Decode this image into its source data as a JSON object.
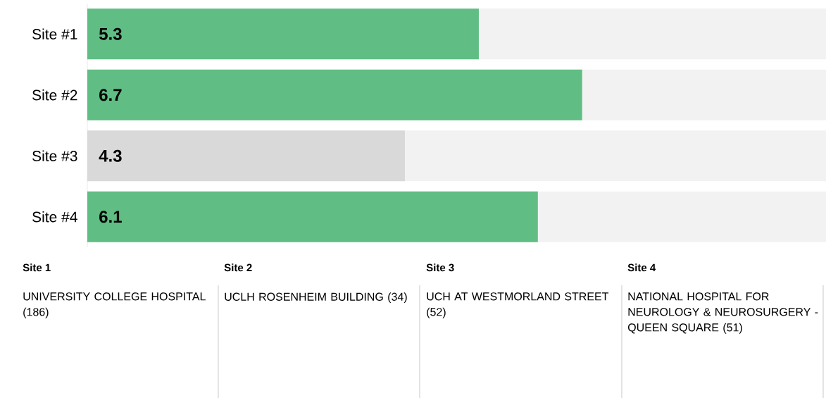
{
  "chart_data": {
    "type": "bar",
    "orientation": "horizontal",
    "stacked": true,
    "categories": [
      "Site #1",
      "Site #2",
      "Site #3",
      "Site #4"
    ],
    "xlim": [
      0,
      10
    ],
    "tick_labels": "y",
    "series": [
      {
        "colors": [
          "#60bd84",
          "#60bd84",
          "#d9d9d9",
          "#60bd84"
        ],
        "values": [
          5.3,
          6.7,
          4.3,
          6.1
        ],
        "value_labels": [
          "5.3",
          "6.7",
          "4.3",
          "6.1"
        ]
      },
      {
        "color": "#f2f2f2",
        "values": [
          4.7,
          3.3,
          5.7,
          3.9
        ]
      }
    ],
    "annotations": [
      "Site 1",
      "UNIVERSITY COLLEGE HOSPITAL (186)",
      "Site 2",
      "UCLH ROSENHEIM BUILDING (34)",
      "Site 3",
      "UCH AT WESTMORLAND STREET (52)",
      "Site 4",
      "NATIONAL HOSPITAL FOR NEUROLOGY & NEUROSURGERY - QUEEN SQUARE (51)"
    ]
  }
}
